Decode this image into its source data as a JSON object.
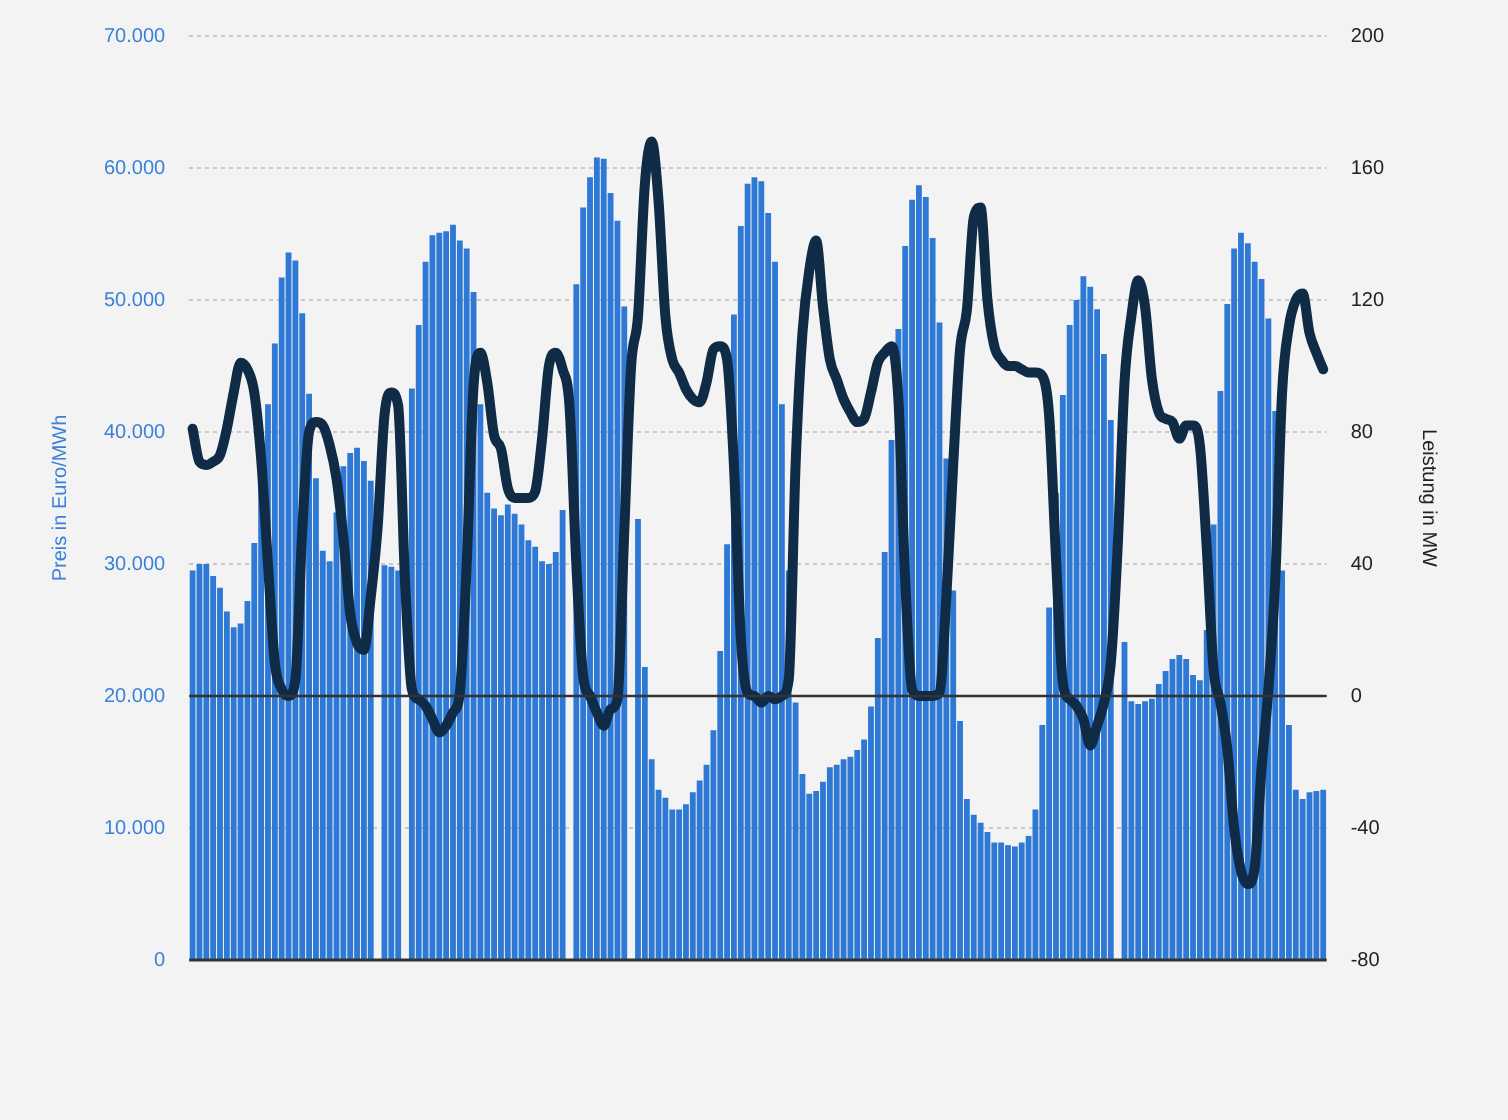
{
  "chart_data": {
    "type": "bar",
    "ylabel": "Preis in Euro/MWh",
    "y2label": "Leistung in MW",
    "categories": [
      null,
      null,
      null,
      null,
      null,
      null,
      null,
      null,
      null,
      null,
      null,
      null,
      null,
      null,
      null,
      null,
      null,
      null,
      null,
      null,
      null,
      null,
      null,
      null,
      null,
      null,
      null,
      null,
      null,
      null,
      null,
      null,
      null,
      null,
      null,
      null,
      null,
      null,
      null,
      null,
      null,
      null,
      null,
      null,
      null,
      null,
      null,
      null,
      null,
      null,
      null,
      null,
      null,
      null,
      null,
      null,
      null,
      null,
      null,
      null,
      null,
      null,
      null,
      null,
      null,
      null,
      null,
      null,
      null,
      null,
      null,
      null,
      null,
      null,
      null,
      null,
      null,
      null,
      null,
      null,
      null,
      null,
      null,
      null,
      null,
      null,
      null,
      null,
      null,
      null,
      null,
      null,
      null,
      null,
      null,
      null,
      null,
      null,
      null,
      null,
      null,
      null,
      null,
      null,
      null,
      null,
      null,
      null,
      null,
      null,
      null,
      null,
      null,
      null,
      null,
      null,
      null,
      null,
      null,
      null,
      null,
      null,
      null,
      null,
      null,
      null,
      null,
      null,
      null,
      null,
      null,
      null,
      null,
      null,
      null,
      null,
      null,
      null,
      null,
      null,
      null,
      null,
      null,
      null,
      null,
      null,
      null,
      null,
      null,
      null,
      null,
      null,
      null,
      null,
      null,
      null,
      null,
      null,
      null,
      null,
      null,
      null,
      null,
      null,
      null,
      null
    ],
    "series": [
      {
        "color": "#2e78d6",
        "values": [
          29500,
          30000,
          30000,
          29100,
          28200,
          26400,
          25200,
          25500,
          27200,
          31600,
          36000,
          42100,
          46700,
          51700,
          53600,
          53000,
          49000,
          42900,
          36500,
          31000,
          30200,
          33900,
          37400,
          38400,
          38800,
          37800,
          36300,
          null,
          29900,
          29800,
          29500,
          null,
          43300,
          48100,
          52900,
          54900,
          55100,
          55200,
          55700,
          54500,
          53900,
          50600,
          42100,
          35400,
          34200,
          33700,
          34500,
          33800,
          33000,
          31800,
          31300,
          30200,
          30000,
          30900,
          34100,
          null,
          51200,
          57000,
          59300,
          60800,
          60700,
          58100,
          56000,
          49500,
          null,
          33400,
          22200,
          15200,
          12900,
          12300,
          11400,
          11400,
          11800,
          12700,
          13600,
          14800,
          17400,
          23400,
          31500,
          48900,
          55600,
          58800,
          59300,
          59000,
          56600,
          52900,
          42100,
          29500,
          19500,
          14100,
          12600,
          12800,
          13500,
          14600,
          14800,
          15200,
          15400,
          15900,
          16700,
          19200,
          24400,
          30900,
          39400,
          47800,
          54100,
          57600,
          58700,
          57800,
          54700,
          48300,
          38000,
          28000,
          18100,
          12200,
          11000,
          10400,
          9700,
          8900,
          8900,
          8700,
          8600,
          8900,
          9400,
          11400,
          17800,
          26700,
          35400,
          42800,
          48100,
          50000,
          51800,
          51000,
          49300,
          45900,
          40900,
          null,
          24100,
          19600,
          19400,
          19600,
          19800,
          20900,
          21900,
          22800,
          23100,
          22800,
          21600,
          21200,
          25000,
          33000,
          43100,
          49700,
          53900,
          55100,
          54300,
          52900,
          51600,
          48600,
          41600,
          29500,
          17800,
          12900,
          12200,
          12700,
          12800,
          12900
        ]
      },
      {
        "type": "line",
        "axis": "y2",
        "color": "#0f2b46",
        "values": [
          81,
          71,
          70,
          71,
          73,
          81,
          92,
          101,
          99,
          92,
          72,
          40,
          10,
          2,
          0,
          5,
          50,
          80,
          83,
          82,
          76,
          66,
          48,
          25,
          16,
          14,
          30,
          51,
          85,
          92,
          88,
          35,
          2,
          -1,
          -3,
          -7,
          -11,
          -9,
          -5,
          1,
          40,
          94,
          104,
          95,
          79,
          75,
          63,
          60,
          60,
          60,
          62,
          78,
          100,
          104,
          99,
          88,
          40,
          6,
          0,
          -5,
          -9,
          -4,
          -1,
          50,
          100,
          115,
          155,
          168,
          150,
          115,
          102,
          98,
          93,
          90,
          89,
          95,
          105,
          106,
          102,
          70,
          18,
          1,
          0,
          -2,
          0,
          -1,
          0,
          5,
          70,
          110,
          129,
          138,
          118,
          102,
          96,
          90,
          86,
          83,
          84,
          92,
          101,
          104,
          106,
          90,
          35,
          2,
          0,
          0,
          0,
          1,
          30,
          70,
          105,
          117,
          145,
          148,
          120,
          106,
          102,
          100,
          100,
          99,
          98,
          98,
          97,
          85,
          42,
          4,
          -1,
          -3,
          -7,
          -15,
          -9,
          -2,
          10,
          45,
          95,
          115,
          126,
          118,
          96,
          86,
          84,
          83,
          78,
          82,
          82,
          76,
          45,
          8,
          -2,
          -16,
          -40,
          -53,
          -57,
          -52,
          -22,
          2,
          35,
          92,
          112,
          120,
          122,
          110,
          104,
          99
        ]
      }
    ],
    "ylim": [
      0,
      70000
    ],
    "yticks": [
      {
        "value": 0,
        "label": "0"
      },
      {
        "value": 10000,
        "label": "10.000"
      },
      {
        "value": 20000,
        "label": "20.000"
      },
      {
        "value": 30000,
        "label": "30.000"
      },
      {
        "value": 40000,
        "label": "40.000"
      },
      {
        "value": 50000,
        "label": "50.000"
      },
      {
        "value": 60000,
        "label": "60.000"
      },
      {
        "value": 70000,
        "label": "70.000"
      }
    ],
    "y2lim": [
      -80,
      200
    ],
    "y2ticks": [
      -80,
      -40,
      0,
      40,
      80,
      120,
      160,
      200
    ],
    "ref_lines": [
      {
        "axis": "y2",
        "value": 0,
        "color": "#333333"
      }
    ],
    "grid": "y",
    "legend": false,
    "marker": "none",
    "line_style": "solid"
  }
}
